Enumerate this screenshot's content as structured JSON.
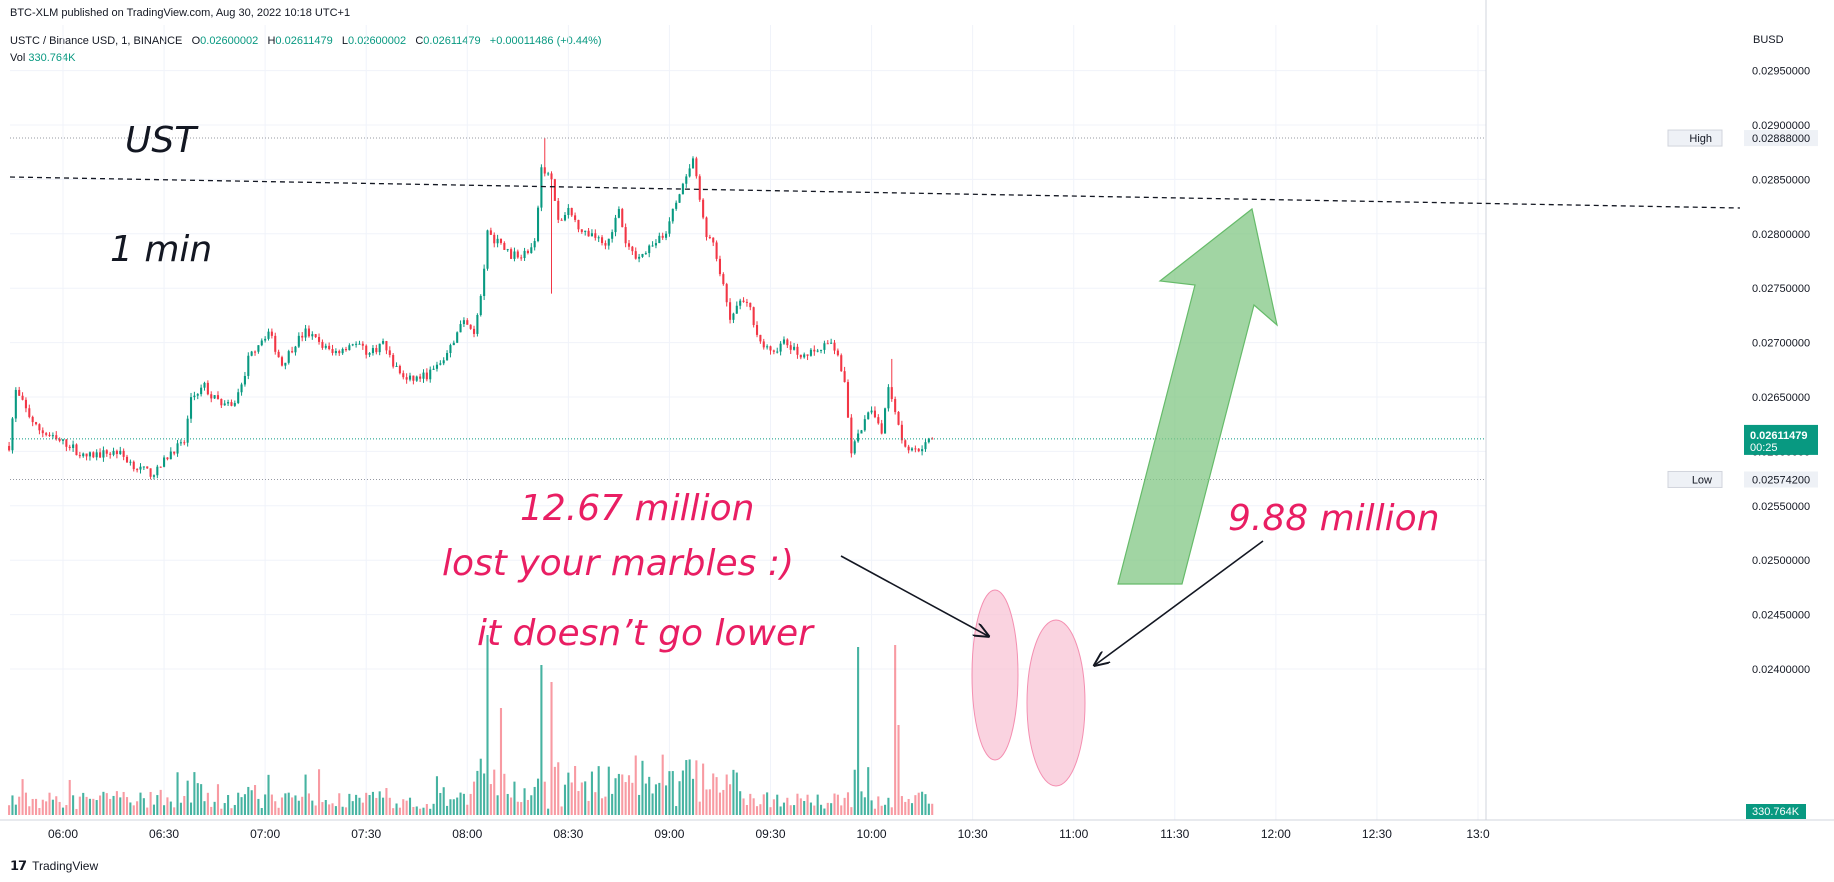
{
  "header": {
    "published": "BTC-XLM published on TradingView.com, Aug 30, 2022 10:18 UTC+1",
    "symbol": "USTC / Binance USD, 1, BINANCE",
    "open_label": "O",
    "open": "0.02600002",
    "high_label": "H",
    "high": "0.02611479",
    "low_label": "L",
    "low": "0.02600002",
    "close_label": "C",
    "close": "0.02611479",
    "change": "+0.00011486 (+0.44%)",
    "vol_label": "Vol",
    "vol": "330.764K",
    "currency": "BUSD"
  },
  "annotations": {
    "ust": "UST",
    "timeframe": "1 min",
    "vol1": "12.67 million",
    "marbles": "lost your marbles :)",
    "lower": "it doesn’t go lower",
    "vol2": "9.88 million"
  },
  "price_tags": {
    "high_label": "High",
    "high_value": "0.02888000",
    "low_label": "Low",
    "low_value": "0.02574200",
    "last_value": "0.02611479",
    "countdown": "00:25",
    "volume_value": "330.764K"
  },
  "footer": {
    "brand": "TradingView"
  },
  "colors": {
    "up": "#089981",
    "down": "#f23645",
    "annotation": "#e91e63",
    "arrow_green": "#81c784",
    "highlight": "#f8bbd0"
  },
  "chart_data": {
    "type": "candlestick",
    "symbol": "USTC / Binance USD",
    "interval": "1",
    "exchange": "BINANCE",
    "y_ticks": [
      0.024,
      0.0245,
      0.025,
      0.0255,
      0.026,
      0.0265,
      0.027,
      0.0275,
      0.028,
      0.0285,
      0.029,
      0.0295
    ],
    "y_tick_labels": [
      "0.02400000",
      "0.02450000",
      "0.02500000",
      "0.02550000",
      "0.02600000",
      "0.02650000",
      "0.02700000",
      "0.02750000",
      "0.02800000",
      "0.02850000",
      "0.02900000",
      "0.02950000"
    ],
    "ylim": [
      0.0237,
      0.0299
    ],
    "x_tick_labels": [
      "06:00",
      "06:30",
      "07:00",
      "07:30",
      "08:00",
      "08:30",
      "09:00",
      "09:30",
      "10:00",
      "10:30",
      "11:00",
      "11:30",
      "12:00",
      "12:30",
      "13:0"
    ],
    "x_tick_minutes": [
      360,
      390,
      420,
      450,
      480,
      510,
      540,
      570,
      600,
      630,
      660,
      690,
      720,
      750,
      780
    ],
    "xlim_minutes": [
      343,
      786
    ],
    "first_bar_minute": 344,
    "last_bar_minute": 618,
    "close_path": [
      [
        344,
        0.02605
      ],
      [
        346,
        0.02655
      ],
      [
        352,
        0.02622
      ],
      [
        358,
        0.0261
      ],
      [
        362,
        0.02606
      ],
      [
        366,
        0.02595
      ],
      [
        376,
        0.026
      ],
      [
        382,
        0.02585
      ],
      [
        386,
        0.0258
      ],
      [
        388,
        0.02582
      ],
      [
        392,
        0.026
      ],
      [
        396,
        0.02608
      ],
      [
        398,
        0.0265
      ],
      [
        402,
        0.0266
      ],
      [
        404,
        0.0265
      ],
      [
        410,
        0.0264
      ],
      [
        413,
        0.0266
      ],
      [
        415,
        0.02685
      ],
      [
        418,
        0.027
      ],
      [
        421,
        0.0271
      ],
      [
        425,
        0.0268
      ],
      [
        429,
        0.027
      ],
      [
        432,
        0.0271
      ],
      [
        436,
        0.027
      ],
      [
        440,
        0.0269
      ],
      [
        446,
        0.027
      ],
      [
        451,
        0.0269
      ],
      [
        455,
        0.027
      ],
      [
        458,
        0.0268
      ],
      [
        462,
        0.02665
      ],
      [
        468,
        0.0267
      ],
      [
        472,
        0.0268
      ],
      [
        476,
        0.027
      ],
      [
        478,
        0.0272
      ],
      [
        482,
        0.0271
      ],
      [
        484,
        0.0274
      ],
      [
        486,
        0.028
      ],
      [
        490,
        0.0279
      ],
      [
        493,
        0.0278
      ],
      [
        496,
        0.0278
      ],
      [
        500,
        0.0279
      ],
      [
        502,
        0.0286
      ],
      [
        505,
        0.0285
      ],
      [
        507,
        0.0281
      ],
      [
        510,
        0.0282
      ],
      [
        515,
        0.028
      ],
      [
        518,
        0.028
      ],
      [
        521,
        0.0279
      ],
      [
        525,
        0.0282
      ],
      [
        527,
        0.0279
      ],
      [
        530,
        0.0278
      ],
      [
        535,
        0.0279
      ],
      [
        539,
        0.028
      ],
      [
        542,
        0.0283
      ],
      [
        545,
        0.0285
      ],
      [
        547,
        0.0287
      ],
      [
        549,
        0.0283
      ],
      [
        551,
        0.028
      ],
      [
        553,
        0.0279
      ],
      [
        556,
        0.0275
      ],
      [
        558,
        0.0272
      ],
      [
        561,
        0.0274
      ],
      [
        564,
        0.0273
      ],
      [
        567,
        0.027
      ],
      [
        570,
        0.0269
      ],
      [
        574,
        0.027
      ],
      [
        578,
        0.0269
      ],
      [
        583,
        0.0269
      ],
      [
        588,
        0.027
      ],
      [
        590,
        0.0269
      ],
      [
        592,
        0.0266
      ],
      [
        594,
        0.026
      ],
      [
        597,
        0.0262
      ],
      [
        600,
        0.0264
      ],
      [
        603,
        0.0262
      ],
      [
        605,
        0.0266
      ],
      [
        607,
        0.0264
      ],
      [
        609,
        0.0261
      ],
      [
        612,
        0.026
      ],
      [
        615,
        0.02605
      ],
      [
        618,
        0.02611
      ]
    ],
    "marked_volume_bars": [
      {
        "minute": 596,
        "volume_label": "12.67 million"
      },
      {
        "minute": 607,
        "volume_label": "9.88 million"
      }
    ],
    "last_close": 0.02611479,
    "high": 0.02888,
    "low": 0.025742,
    "volume_last": "330.764K",
    "grid": true
  }
}
